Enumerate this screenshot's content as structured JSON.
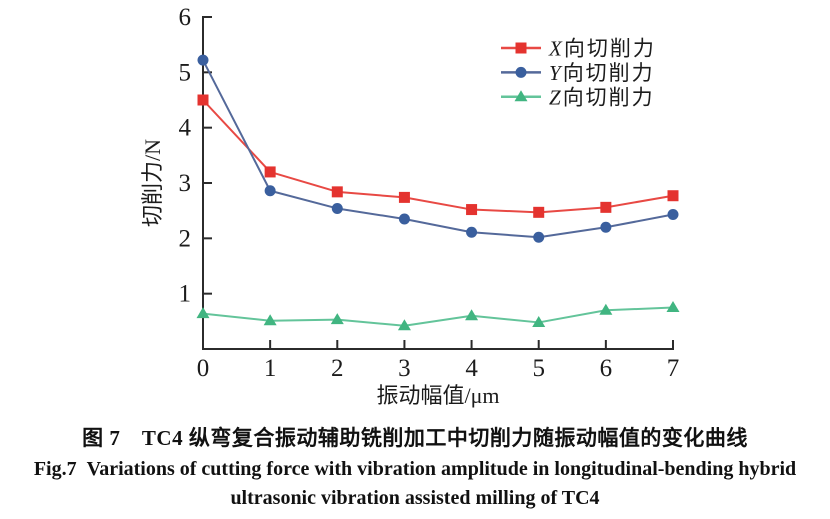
{
  "figure": {
    "caption_cn": "图 7　TC4 纵弯复合振动辅助铣削加工中切削力随振动幅值的变化曲线",
    "caption_en_line1": "Fig.7  Variations of cutting force with vibration amplitude in longitudinal-bending hybrid",
    "caption_en_line2": "ultrasonic vibration assisted milling of TC4"
  },
  "chart_data": {
    "type": "line",
    "x": [
      0,
      1,
      2,
      3,
      4,
      5,
      6,
      7
    ],
    "series": [
      {
        "name": "X向切削力",
        "marker": "square",
        "color": "#e4332f",
        "line_color": "#e84944",
        "values": [
          4.5,
          3.2,
          2.84,
          2.74,
          2.52,
          2.47,
          2.56,
          2.77
        ]
      },
      {
        "name": "Y向切削力",
        "marker": "circle",
        "color": "#3a5f9e",
        "line_color": "#54699a",
        "values": [
          5.22,
          2.86,
          2.54,
          2.35,
          2.11,
          2.02,
          2.2,
          2.43
        ]
      },
      {
        "name": "Z向切削力",
        "marker": "triangle",
        "color": "#41b581",
        "line_color": "#63c49a",
        "values": [
          0.64,
          0.51,
          0.53,
          0.42,
          0.6,
          0.48,
          0.7,
          0.75
        ]
      }
    ],
    "xlabel": "振动幅值/μm",
    "ylabel": "切削力/N",
    "xlim": [
      0,
      7
    ],
    "ylim": [
      0,
      6
    ],
    "xticks": [
      0,
      1,
      2,
      3,
      4,
      5,
      6,
      7
    ],
    "yticks": [
      1,
      2,
      3,
      4,
      5,
      6
    ],
    "grid": false,
    "legend_position": "top-right",
    "axis_color": "#2b2b2b",
    "tick_label_color": "#1c1c1c"
  }
}
